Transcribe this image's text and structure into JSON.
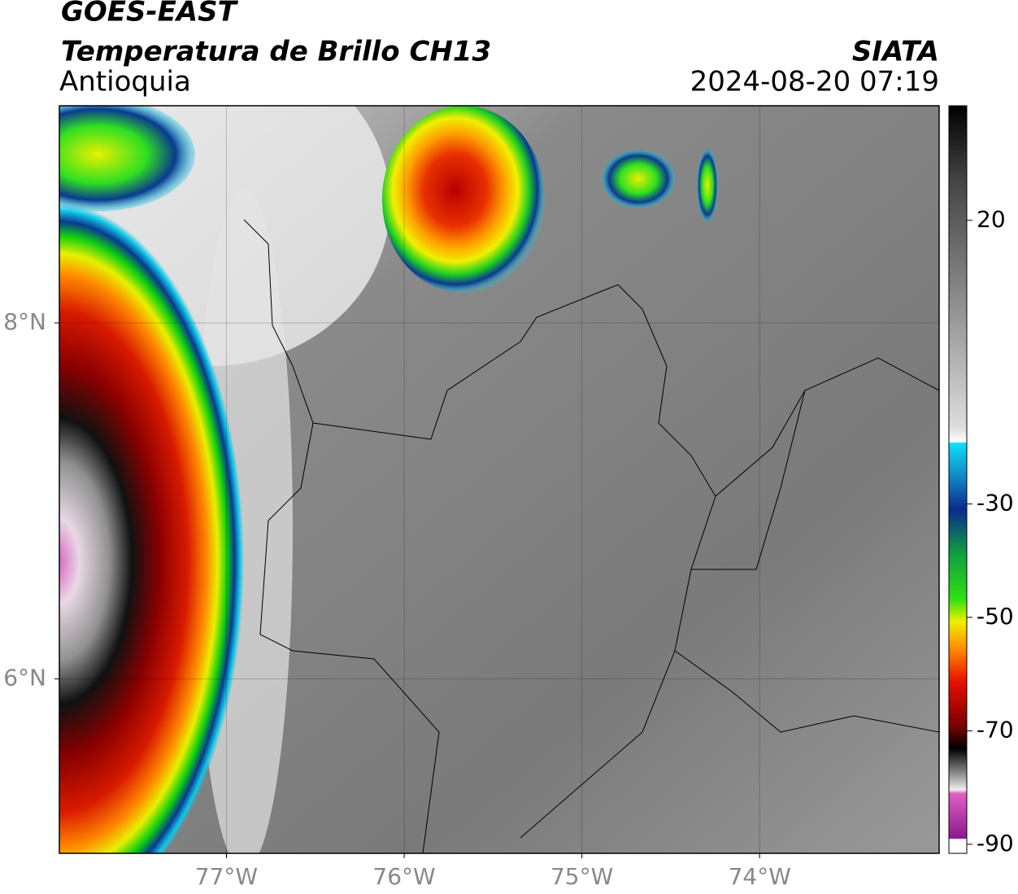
{
  "header": {
    "satellite": "GOES-EAST",
    "product": "Temperatura de Brillo CH13",
    "region": "Antioquia",
    "source": "SIATA",
    "datetime": "2024-08-20 07:19"
  },
  "map": {
    "lon_range": [
      -77.94,
      -72.99
    ],
    "lat_range": [
      5.02,
      9.22
    ],
    "lon_ticks": [
      {
        "value": -77,
        "label": "77°W"
      },
      {
        "value": -76,
        "label": "76°W"
      },
      {
        "value": -75,
        "label": "75°W"
      },
      {
        "value": -74,
        "label": "74°W"
      }
    ],
    "lat_ticks": [
      {
        "value": 8,
        "label": "8°N"
      },
      {
        "value": 6,
        "label": "6°N"
      }
    ]
  },
  "colorbar": {
    "range": [
      -91.6,
      40.2
    ],
    "ticks": [
      20,
      -30,
      -50,
      -70,
      -90
    ]
  }
}
